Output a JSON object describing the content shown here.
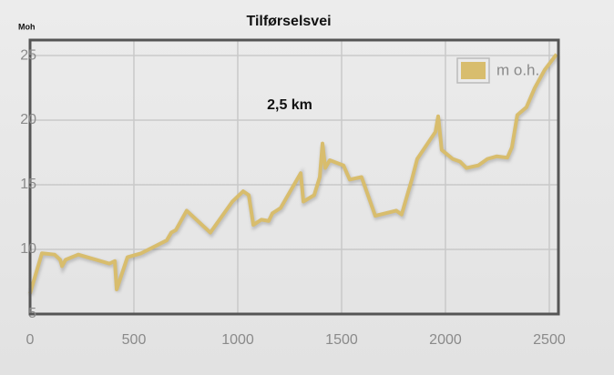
{
  "chart_data": {
    "type": "line",
    "title": "Tilførselsvei",
    "y_label": "Moh",
    "annotation": "2,5 km",
    "x": [
      0,
      57,
      118,
      145,
      154,
      171,
      232,
      382,
      408,
      417,
      469,
      535,
      658,
      680,
      702,
      754,
      868,
      974,
      1026,
      1053,
      1075,
      1114,
      1149,
      1167,
      1206,
      1303,
      1316,
      1368,
      1395,
      1408,
      1421,
      1443,
      1509,
      1539,
      1596,
      1662,
      1763,
      1789,
      1838,
      1864,
      1952,
      1965,
      1982,
      2035,
      2070,
      2101,
      2158,
      2202,
      2246,
      2298,
      2320,
      2346,
      2390,
      2430,
      2478,
      2535
    ],
    "series": [
      {
        "name": "m o.h.",
        "color": "#d8bd6d",
        "values": [
          6.6,
          9.7,
          9.6,
          9.2,
          8.7,
          9.2,
          9.6,
          8.9,
          9.1,
          6.9,
          9.4,
          9.7,
          10.7,
          11.3,
          11.5,
          13.0,
          11.3,
          13.7,
          14.5,
          14.2,
          11.9,
          12.3,
          12.2,
          12.8,
          13.2,
          15.9,
          13.7,
          14.2,
          15.6,
          18.2,
          16.3,
          16.9,
          16.5,
          15.4,
          15.6,
          12.6,
          13.0,
          12.7,
          15.4,
          17.0,
          19.1,
          20.3,
          17.7,
          17.0,
          16.8,
          16.3,
          16.5,
          17.0,
          17.2,
          17.1,
          17.9,
          20.4,
          21.0,
          22.5,
          23.9,
          25.1
        ]
      }
    ],
    "xlim": [
      0,
      2544
    ],
    "ylim": [
      5,
      26.2
    ],
    "xticks": [
      0,
      500,
      1000,
      1500,
      2000,
      2500
    ],
    "yticks": [
      5,
      10,
      15,
      20,
      25
    ],
    "grid": true,
    "legend": "top-right"
  }
}
